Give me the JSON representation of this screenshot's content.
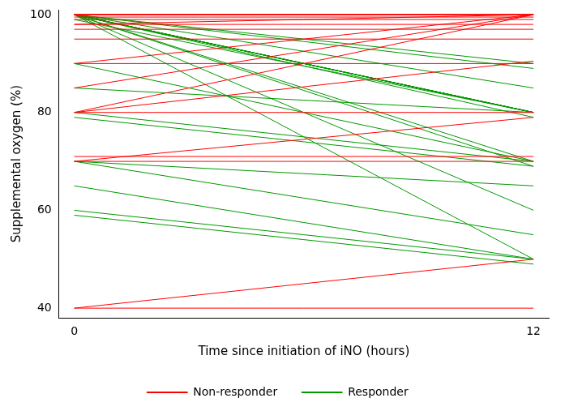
{
  "chart_data": {
    "type": "line",
    "x_label": "Time since initiation of iNO (hours)",
    "y_label": "Supplemental oxygen (%)",
    "x": [
      0,
      12
    ],
    "xlim": [
      -0.4,
      12.4
    ],
    "xticks": [
      0,
      12
    ],
    "ylim": [
      38,
      101
    ],
    "yticks": [
      40,
      60,
      80,
      100
    ],
    "grid": false,
    "legend": "bottom",
    "series": [
      {
        "name": "Non-responder",
        "color": "#ff0000",
        "line_style": "solid",
        "lines": [
          [
            100,
            100
          ],
          [
            100,
            100
          ],
          [
            100,
            100
          ],
          [
            100,
            100
          ],
          [
            99.5,
            99.5
          ],
          [
            99,
            99
          ],
          [
            98,
            98
          ],
          [
            97,
            97
          ],
          [
            95,
            95
          ],
          [
            90,
            90
          ],
          [
            80,
            80
          ],
          [
            71,
            71
          ],
          [
            70,
            70
          ],
          [
            40,
            40
          ],
          [
            80,
            100
          ],
          [
            85,
            100
          ],
          [
            90,
            100
          ],
          [
            98,
            100
          ],
          [
            80,
            90.5
          ],
          [
            70,
            79
          ],
          [
            40,
            50
          ]
        ]
      },
      {
        "name": "Responder",
        "color": "#009900",
        "line_style": "solid",
        "lines": [
          [
            100,
            80
          ],
          [
            100,
            80
          ],
          [
            100,
            80
          ],
          [
            100,
            80
          ],
          [
            100,
            80
          ],
          [
            100,
            80
          ],
          [
            100,
            80
          ],
          [
            100,
            80
          ],
          [
            99,
            80
          ],
          [
            100,
            79
          ],
          [
            100,
            90
          ],
          [
            100,
            89
          ],
          [
            100,
            85
          ],
          [
            100,
            70
          ],
          [
            100,
            69
          ],
          [
            100,
            50
          ],
          [
            100,
            60
          ],
          [
            90,
            70
          ],
          [
            85,
            80
          ],
          [
            80,
            70
          ],
          [
            79,
            69
          ],
          [
            70,
            65
          ],
          [
            70,
            55
          ],
          [
            65,
            50
          ],
          [
            60,
            50
          ],
          [
            59,
            49
          ]
        ]
      }
    ]
  }
}
